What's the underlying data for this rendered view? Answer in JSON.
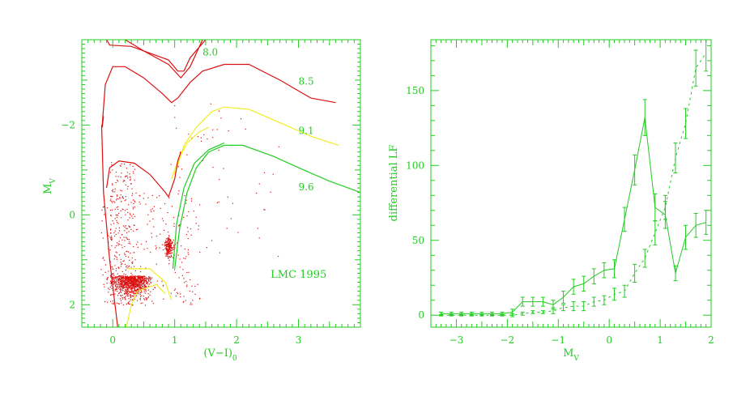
{
  "colors": {
    "axis": "#22cc22",
    "label": "#22cc22",
    "iso_80": "#dd1111",
    "iso_85": "#dd1111",
    "iso_91": "#eeee22",
    "iso_96": "#22cc22",
    "stars": "#dd1111",
    "lf_solid": "#22cc22",
    "lf_dashed": "#22cc22"
  },
  "chart_data": [
    {
      "type": "scatter",
      "xlabel": "(V−I)",
      "xlabel_sub": "0",
      "ylabel": "M",
      "ylabel_sub": "V",
      "xlim": [
        -0.5,
        4.0
      ],
      "ylim": [
        2.5,
        -3.9
      ],
      "xticks": [
        0,
        1,
        2,
        3
      ],
      "yticks": [
        -2,
        0,
        2
      ],
      "grid": false,
      "annotation": "LMC 1995",
      "isochrones": [
        {
          "name": "8.0",
          "color_key": "iso_80",
          "points": [
            [
              -0.1,
              -3.9
            ],
            [
              -0.05,
              -3.78
            ],
            [
              0.3,
              -3.75
            ],
            [
              0.9,
              -3.45
            ],
            [
              1.05,
              -3.2
            ],
            [
              1.15,
              -3.2
            ],
            [
              1.25,
              -3.5
            ],
            [
              1.5,
              -3.9
            ]
          ],
          "extra": [
            [
              [
                0.2,
                -3.9
              ],
              [
                0.5,
                -3.65
              ],
              [
                0.9,
                -3.35
              ],
              [
                1.1,
                -3.05
              ],
              [
                1.25,
                -3.3
              ],
              [
                1.45,
                -3.9
              ]
            ]
          ]
        },
        {
          "name": "8.5",
          "color_key": "iso_85",
          "points": [
            [
              -0.17,
              -2.0
            ],
            [
              -0.12,
              -2.9
            ],
            [
              0.0,
              -3.3
            ],
            [
              0.2,
              -3.3
            ],
            [
              0.5,
              -3.05
            ],
            [
              0.8,
              -2.7
            ],
            [
              0.95,
              -2.5
            ],
            [
              1.05,
              -2.6
            ],
            [
              1.25,
              -2.95
            ],
            [
              1.45,
              -3.2
            ],
            [
              1.8,
              -3.35
            ],
            [
              2.2,
              -3.35
            ],
            [
              2.7,
              -3.0
            ],
            [
              3.2,
              -2.6
            ],
            [
              3.6,
              -2.5
            ]
          ],
          "extra": [
            [
              [
                -0.17,
                -1.95
              ],
              [
                -0.15,
                -2.2
              ]
            ]
          ]
        },
        {
          "name": "9.1",
          "color_key": "iso_91",
          "points": [
            [
              1.0,
              -0.9
            ],
            [
              1.15,
              -1.55
            ],
            [
              1.35,
              -1.95
            ],
            [
              1.6,
              -2.3
            ],
            [
              1.8,
              -2.4
            ],
            [
              2.2,
              -2.35
            ],
            [
              2.7,
              -2.05
            ],
            [
              3.2,
              -1.75
            ],
            [
              3.65,
              -1.55
            ]
          ],
          "extra": [
            [
              [
                0.95,
                -0.8
              ],
              [
                1.05,
                -1.2
              ],
              [
                1.2,
                -1.6
              ],
              [
                1.4,
                -1.85
              ],
              [
                1.55,
                -1.95
              ]
            ]
          ]
        },
        {
          "name": "9.6",
          "color_key": "iso_96",
          "points": [
            [
              1.0,
              1.2
            ],
            [
              1.08,
              0.3
            ],
            [
              1.2,
              -0.5
            ],
            [
              1.35,
              -1.05
            ],
            [
              1.55,
              -1.4
            ],
            [
              1.8,
              -1.55
            ],
            [
              2.1,
              -1.55
            ],
            [
              2.6,
              -1.3
            ],
            [
              3.0,
              -1.05
            ],
            [
              3.5,
              -0.75
            ],
            [
              4.0,
              -0.5
            ]
          ],
          "extra": [
            [
              [
                0.97,
                1.2
              ],
              [
                1.03,
                0.2
              ],
              [
                1.15,
                -0.6
              ],
              [
                1.32,
                -1.15
              ],
              [
                1.55,
                -1.45
              ],
              [
                1.8,
                -1.6
              ]
            ]
          ]
        }
      ],
      "rgb_loop": [
        [
          -0.1,
          -0.6
        ],
        [
          -0.05,
          -1.05
        ],
        [
          0.1,
          -1.2
        ],
        [
          0.35,
          -1.15
        ],
        [
          0.6,
          -0.9
        ],
        [
          0.85,
          -0.5
        ],
        [
          0.9,
          -0.4
        ],
        [
          1.0,
          -0.8
        ],
        [
          1.05,
          -1.2
        ],
        [
          1.1,
          -1.4
        ]
      ],
      "iso_labels": [
        {
          "text": "8.0",
          "x": 1.45,
          "y": -3.55
        },
        {
          "text": "8.5",
          "x": 3.0,
          "y": -2.9
        },
        {
          "text": "9.1",
          "x": 3.0,
          "y": -1.8
        },
        {
          "text": "9.6",
          "x": 3.0,
          "y": -0.55
        }
      ],
      "annotation_pos": {
        "x": 2.55,
        "y": 1.4
      }
    },
    {
      "type": "line",
      "xlabel": "M",
      "xlabel_sub": "V",
      "ylabel": "differential LF",
      "xlim": [
        -3.5,
        2.0
      ],
      "ylim": [
        -8,
        184
      ],
      "xticks": [
        -3,
        -2,
        -1,
        0,
        1,
        2
      ],
      "yticks": [
        0,
        50,
        100,
        150
      ],
      "grid": false,
      "series": [
        {
          "style": "solid",
          "x": [
            -3.3,
            -3.1,
            -2.9,
            -2.7,
            -2.5,
            -2.3,
            -2.1,
            -1.9,
            -1.7,
            -1.5,
            -1.3,
            -1.1,
            -0.9,
            -0.7,
            -0.5,
            -0.3,
            -0.1,
            0.1,
            0.3,
            0.5,
            0.7,
            0.9,
            1.1,
            1.3,
            1.5,
            1.7,
            1.9
          ],
          "values": [
            1,
            1,
            1,
            1,
            1,
            1,
            1,
            2,
            9,
            9,
            9,
            7,
            12,
            19,
            21,
            26,
            30,
            31,
            64,
            97,
            132,
            72,
            67,
            28,
            52,
            60,
            62
          ],
          "errors": [
            1,
            1,
            1,
            1,
            1,
            1,
            1,
            2,
            3,
            3,
            3,
            3,
            4,
            5,
            5,
            5,
            5,
            6,
            8,
            10,
            12,
            9,
            9,
            5,
            8,
            8,
            8
          ]
        },
        {
          "style": "dashed",
          "x": [
            -3.3,
            -3.1,
            -2.9,
            -2.7,
            -2.5,
            -2.3,
            -2.1,
            -1.9,
            -1.7,
            -1.5,
            -1.3,
            -1.1,
            -0.9,
            -0.7,
            -0.5,
            -0.3,
            -0.1,
            0.1,
            0.3,
            0.5,
            0.7,
            0.9,
            1.1,
            1.3,
            1.5,
            1.7,
            1.9
          ],
          "values": [
            0,
            0,
            0,
            0,
            0,
            0,
            0,
            0,
            1,
            2,
            2,
            3,
            5,
            6,
            6,
            9,
            10,
            14,
            16,
            28,
            38,
            55,
            72,
            105,
            128,
            165,
            175
          ],
          "errors": [
            0.5,
            0.5,
            0.5,
            0.5,
            0.5,
            0.5,
            0.5,
            1,
            1,
            1,
            1,
            2,
            2,
            3,
            3,
            3,
            3,
            4,
            4,
            6,
            6,
            8,
            8,
            10,
            10,
            12,
            12
          ]
        }
      ]
    }
  ]
}
